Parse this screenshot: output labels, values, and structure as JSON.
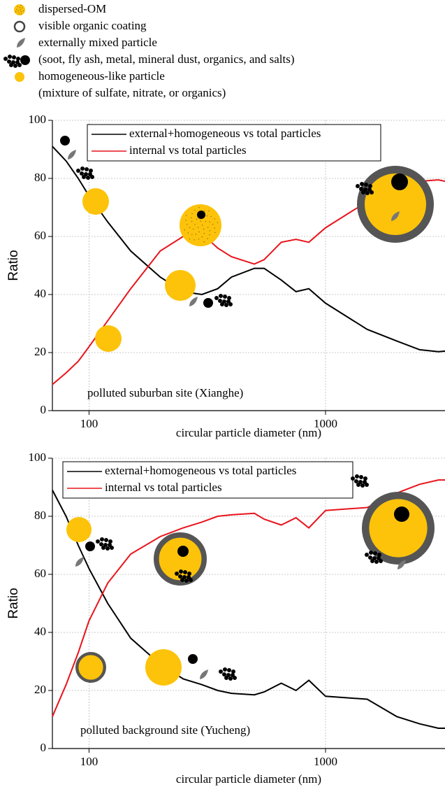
{
  "particle_legend": {
    "items": [
      "dispersed-OM",
      "visible organic coating",
      "externally mixed particle",
      "(soot, fly ash, metal, mineral dust, organics, and salts)",
      "homogeneous-like particle",
      "(mixture of sulfate, nitrate, or organics)"
    ]
  },
  "chart_data": [
    {
      "type": "line",
      "log_x": true,
      "grid": true,
      "legend_position": "top",
      "xlabel": "circular particle diameter (nm)",
      "ylabel": "Ratio",
      "annotation": "polluted suburban site (Xianghe)",
      "annotation_color": "#1a3fd0",
      "x": [
        70,
        80,
        90,
        100,
        120,
        150,
        200,
        250,
        300,
        350,
        400,
        500,
        550,
        650,
        750,
        850,
        1000,
        1500,
        2000,
        2500,
        3000,
        3200
      ],
      "series": [
        {
          "name": "external+homogeneous vs total particles",
          "color": "#000000",
          "values": [
            91,
            86,
            80,
            74,
            65,
            55,
            46,
            41,
            40,
            42,
            46,
            49,
            49,
            45,
            41,
            42,
            37,
            28,
            24,
            21,
            20.3,
            20.5
          ]
        },
        {
          "name": "internal vs total  particles",
          "color": "#e8141b",
          "values": [
            9,
            13,
            17,
            22,
            31,
            42,
            55,
            60,
            61,
            56,
            53,
            50.5,
            52,
            58,
            59,
            58,
            63,
            72,
            76,
            79,
            79.5,
            79
          ]
        }
      ],
      "xlim": [
        70,
        3200
      ],
      "ylim": [
        0,
        100
      ],
      "xticks": [
        100,
        1000
      ],
      "yticks": [
        0,
        20,
        40,
        60,
        80,
        100
      ]
    },
    {
      "type": "line",
      "log_x": true,
      "grid": true,
      "legend_position": "top",
      "xlabel": "circular particle diameter (nm)",
      "ylabel": "Ratio",
      "annotation": "polluted background site (Yucheng)",
      "annotation_color": "#1a3fd0",
      "x": [
        70,
        80,
        90,
        100,
        120,
        150,
        200,
        250,
        300,
        350,
        400,
        500,
        550,
        650,
        750,
        850,
        1000,
        1500,
        2000,
        2500,
        3000,
        3200
      ],
      "series": [
        {
          "name": "external+homogeneous vs total particles",
          "color": "#000000",
          "values": [
            89,
            80,
            70,
            62,
            50,
            38,
            29,
            24,
            22,
            20,
            19,
            18.5,
            19.5,
            22.5,
            20,
            23.5,
            18,
            17,
            11,
            8.5,
            7,
            7
          ]
        },
        {
          "name": "internal vs total particles",
          "color": "#e8141b",
          "values": [
            11,
            22,
            33,
            44,
            57,
            67,
            73,
            76,
            78,
            80,
            80.5,
            81,
            79,
            77,
            79.5,
            76,
            82,
            83,
            88,
            91,
            92.5,
            92.5
          ]
        }
      ],
      "xlim": [
        70,
        3200
      ],
      "ylim": [
        0,
        100
      ],
      "xticks": [
        100,
        1000
      ],
      "yticks": [
        0,
        20,
        40,
        60,
        80,
        100
      ]
    }
  ]
}
